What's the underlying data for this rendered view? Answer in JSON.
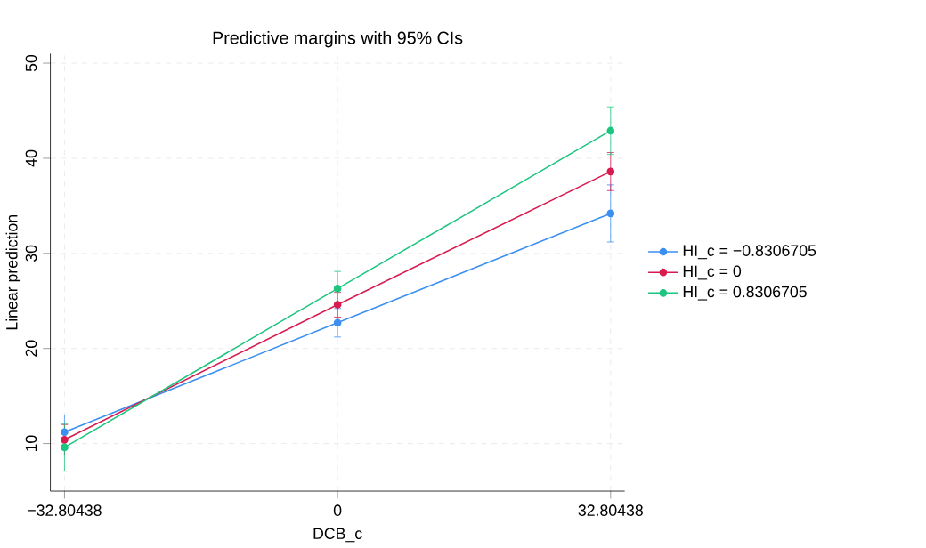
{
  "chart_data": {
    "type": "line",
    "title": "Predictive margins with 95% CIs",
    "xlabel": "DCB_c",
    "ylabel": "Linear prediction",
    "x": [
      -32.80438,
      0,
      32.80438
    ],
    "series": [
      {
        "name": "HI_c = −0.8306705",
        "color": "#3b8ff0",
        "values": [
          11.2,
          22.7,
          34.2
        ],
        "errors": [
          1.8,
          1.5,
          3.0
        ]
      },
      {
        "name": "HI_c = 0",
        "color": "#d81b4f",
        "values": [
          10.4,
          24.6,
          38.6
        ],
        "errors": [
          1.6,
          1.3,
          2.0
        ]
      },
      {
        "name": "HI_c = 0.8306705",
        "color": "#1dc57f",
        "values": [
          9.6,
          26.3,
          42.9
        ],
        "errors": [
          2.5,
          1.8,
          2.5
        ]
      }
    ],
    "xlim": [
      -34.5,
      34.5
    ],
    "ylim": [
      5,
      51
    ],
    "xticks": [
      {
        "value": -32.80438,
        "label": "−32.80438"
      },
      0,
      32.80438
    ],
    "yticks": [
      10,
      20,
      30,
      40,
      50
    ],
    "grid": true,
    "legend": "right",
    "marker": "circle",
    "line_style": "solid"
  }
}
